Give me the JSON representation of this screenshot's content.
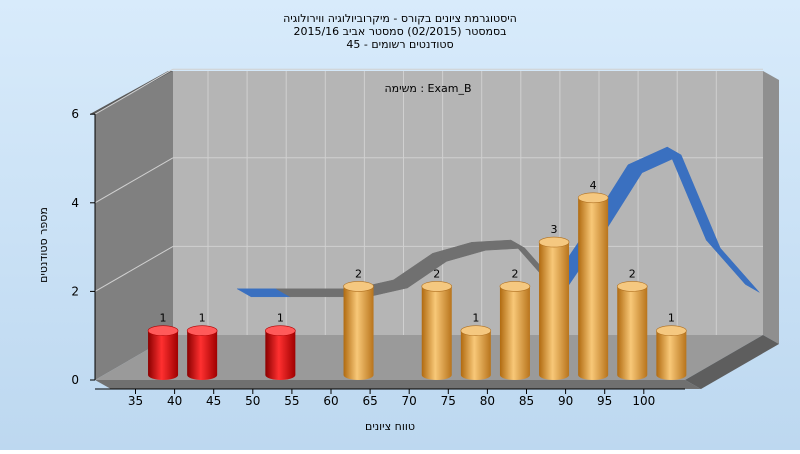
{
  "chart_data": {
    "type": "bar",
    "title_lines": [
      "היסטוגרמת ציונים בקורס - מיקרוביולוגיה ווירולוגיה",
      "בסמסטר  (02/2015)  סמסטר אביב 2015/16",
      "סטודנטים רשומים - 45"
    ],
    "annotation": "משימה : Exam_B",
    "xlabel": "טווח ציונים",
    "ylabel": "מספר סטודנטים",
    "x_ticks": [
      "35",
      "40",
      "45",
      "50",
      "55",
      "60",
      "65",
      "70",
      "75",
      "80",
      "85",
      "90",
      "95",
      "100"
    ],
    "y_ticks": [
      "0",
      "2",
      "4",
      "6"
    ],
    "ylim": [
      0,
      6
    ],
    "bars": [
      {
        "x": 37.5,
        "value": 1,
        "label": "1",
        "color": "#e02020"
      },
      {
        "x": 42.5,
        "value": 1,
        "label": "1",
        "color": "#e02020"
      },
      {
        "x": 52.5,
        "value": 1,
        "label": "1",
        "color": "#e02020"
      },
      {
        "x": 62.5,
        "value": 2,
        "label": "2",
        "color": "#e3a040"
      },
      {
        "x": 72.5,
        "value": 2,
        "label": "2",
        "color": "#e3a040"
      },
      {
        "x": 77.5,
        "value": 1,
        "label": "1",
        "color": "#e3a040"
      },
      {
        "x": 82.5,
        "value": 2,
        "label": "2",
        "color": "#e3a040"
      },
      {
        "x": 87.5,
        "value": 3,
        "label": "3",
        "color": "#e3a040"
      },
      {
        "x": 92.5,
        "value": 4,
        "label": "4",
        "color": "#e3a040"
      },
      {
        "x": 97.5,
        "value": 2,
        "label": "2",
        "color": "#e3a040"
      },
      {
        "x": 102.5,
        "value": 1,
        "label": "1",
        "color": "#e3a040"
      }
    ],
    "trend_line": {
      "points": [
        [
          42.5,
          1.5
        ],
        [
          47.5,
          1.5
        ],
        [
          52.5,
          1.5
        ],
        [
          57.5,
          1.5
        ],
        [
          62.5,
          1.7
        ],
        [
          67.5,
          2.3
        ],
        [
          72.5,
          2.55
        ],
        [
          77.5,
          2.6
        ],
        [
          82.5,
          1.6
        ],
        [
          87.5,
          2.9
        ],
        [
          92.5,
          4.3
        ],
        [
          97.5,
          4.7
        ],
        [
          102.5,
          2.6
        ],
        [
          107.5,
          1.6
        ]
      ],
      "colors": [
        "#3a70c0",
        "#707070"
      ]
    },
    "grid": true,
    "legend": "none",
    "colors": {
      "background_top": "#d8ebfb",
      "background_bottom": "#bdd8f0",
      "back_wall": "#b5b5b5",
      "side_wall": "#808080",
      "floor": "#9a9a9a",
      "grid": "#d0d0d0"
    }
  }
}
